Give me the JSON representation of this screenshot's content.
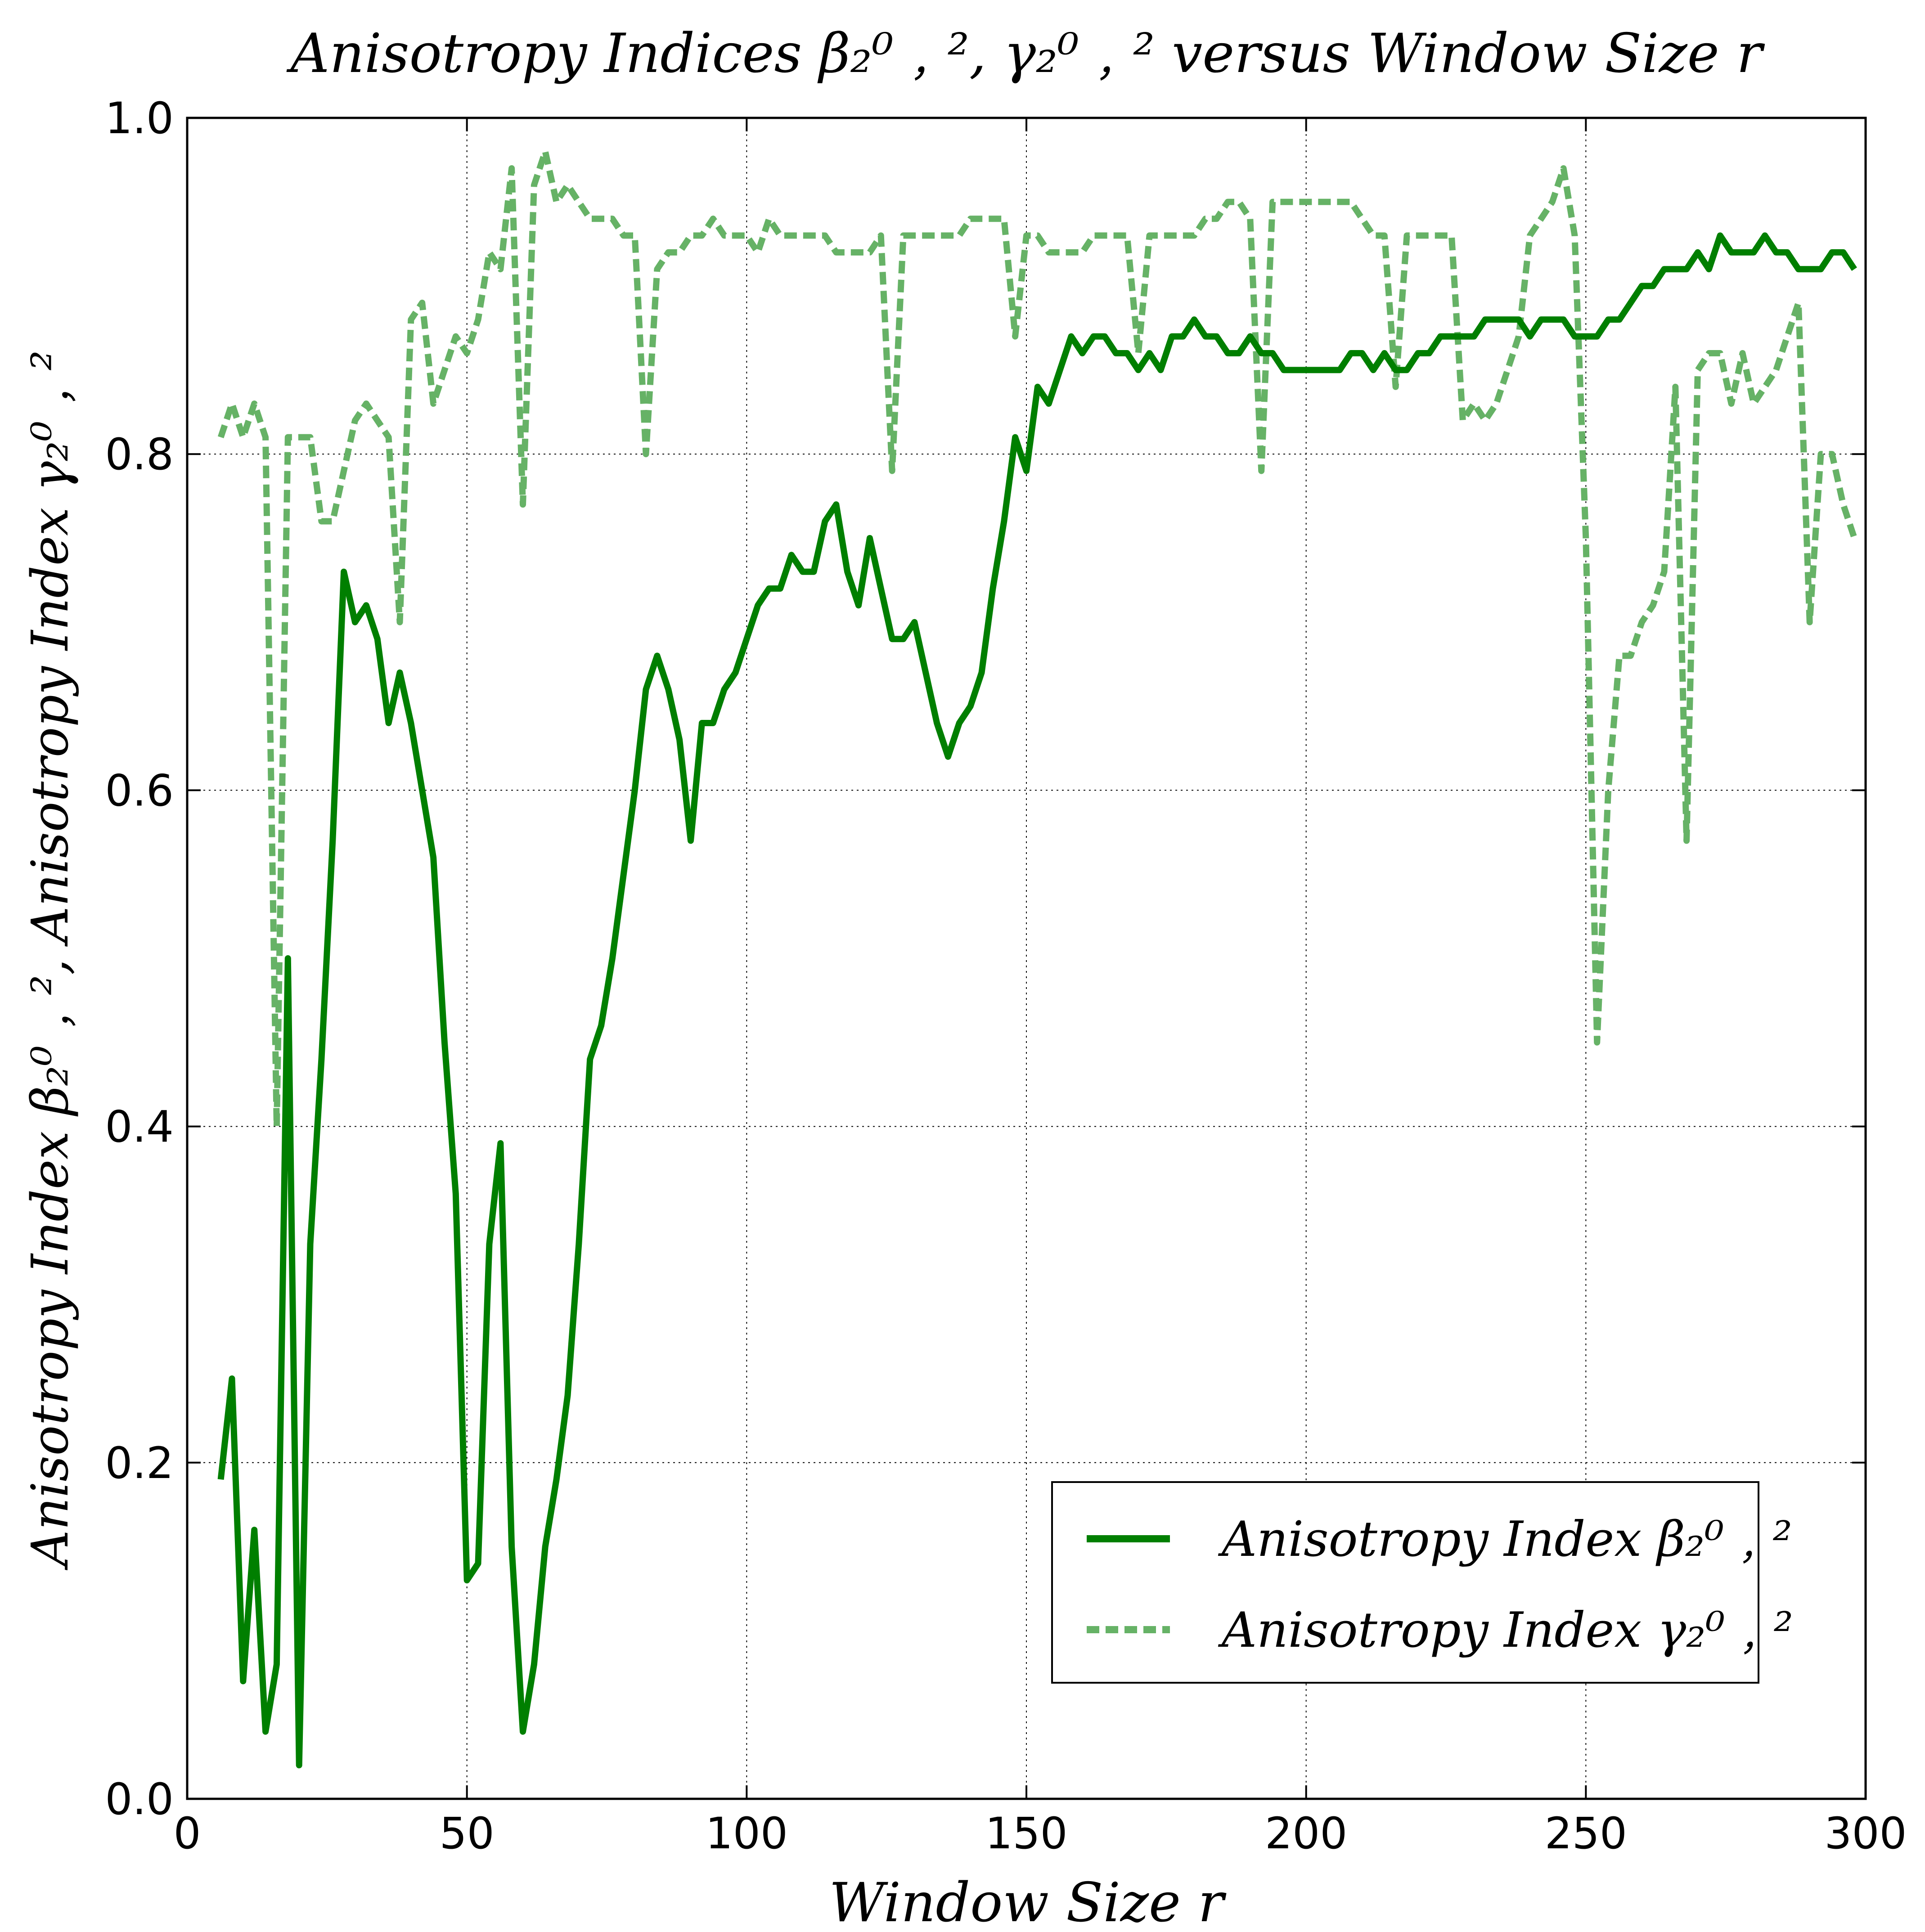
{
  "chart_data": {
    "type": "line",
    "title": "Anisotropy Indices β₂⁰﹐², γ₂⁰﹐² versus Window Size r",
    "xlabel": "Window Size r",
    "ylabel": "Anisotropy Index β₂⁰﹐²,  Anisotropy Index γ₂⁰﹐²",
    "xlim": [
      0,
      300
    ],
    "ylim": [
      0.0,
      1.0
    ],
    "xticks": [
      0,
      50,
      100,
      150,
      200,
      250,
      300
    ],
    "yticks": [
      0.0,
      0.2,
      0.4,
      0.6,
      0.8,
      1.0
    ],
    "xtick_labels": [
      "0",
      "50",
      "100",
      "150",
      "200",
      "250",
      "300"
    ],
    "ytick_labels": [
      "0.0",
      "0.2",
      "0.4",
      "0.6",
      "0.8",
      "1.0"
    ],
    "grid": true,
    "legend_position": "lower-right",
    "series": [
      {
        "name": "Anisotropy Index β₂⁰﹐²",
        "style": "solid",
        "color": "#007f00",
        "x": [
          6,
          8,
          10,
          12,
          14,
          16,
          18,
          20,
          22,
          24,
          26,
          28,
          30,
          32,
          34,
          36,
          38,
          40,
          42,
          44,
          46,
          48,
          50,
          52,
          54,
          56,
          58,
          60,
          62,
          64,
          66,
          68,
          70,
          72,
          74,
          76,
          78,
          80,
          82,
          84,
          86,
          88,
          90,
          92,
          94,
          96,
          98,
          100,
          102,
          104,
          106,
          108,
          110,
          112,
          114,
          116,
          118,
          120,
          122,
          124,
          126,
          128,
          130,
          132,
          134,
          136,
          138,
          140,
          142,
          144,
          146,
          148,
          150,
          152,
          154,
          156,
          158,
          160,
          162,
          164,
          166,
          168,
          170,
          172,
          174,
          176,
          178,
          180,
          182,
          184,
          186,
          188,
          190,
          192,
          194,
          196,
          198,
          200,
          202,
          204,
          206,
          208,
          210,
          212,
          214,
          216,
          218,
          220,
          222,
          224,
          226,
          228,
          230,
          232,
          234,
          236,
          238,
          240,
          242,
          244,
          246,
          248,
          250,
          252,
          254,
          256,
          258,
          260,
          262,
          264,
          266,
          268,
          270,
          272,
          274,
          276,
          278,
          280,
          282,
          284,
          286,
          288,
          290,
          292,
          294,
          296,
          298
        ],
        "y": [
          0.19,
          0.25,
          0.07,
          0.16,
          0.04,
          0.08,
          0.5,
          0.02,
          0.33,
          0.44,
          0.57,
          0.73,
          0.7,
          0.71,
          0.69,
          0.64,
          0.67,
          0.64,
          0.6,
          0.56,
          0.45,
          0.36,
          0.13,
          0.14,
          0.33,
          0.39,
          0.15,
          0.04,
          0.08,
          0.15,
          0.19,
          0.24,
          0.33,
          0.44,
          0.46,
          0.5,
          0.55,
          0.6,
          0.66,
          0.68,
          0.66,
          0.63,
          0.57,
          0.64,
          0.64,
          0.66,
          0.67,
          0.69,
          0.71,
          0.72,
          0.72,
          0.74,
          0.73,
          0.73,
          0.76,
          0.77,
          0.73,
          0.71,
          0.75,
          0.72,
          0.69,
          0.69,
          0.7,
          0.67,
          0.64,
          0.62,
          0.64,
          0.65,
          0.67,
          0.72,
          0.76,
          0.81,
          0.79,
          0.84,
          0.83,
          0.85,
          0.87,
          0.86,
          0.87,
          0.87,
          0.86,
          0.86,
          0.85,
          0.86,
          0.85,
          0.87,
          0.87,
          0.88,
          0.87,
          0.87,
          0.86,
          0.86,
          0.87,
          0.86,
          0.86,
          0.85,
          0.85,
          0.85,
          0.85,
          0.85,
          0.85,
          0.86,
          0.86,
          0.85,
          0.86,
          0.85,
          0.85,
          0.86,
          0.86,
          0.87,
          0.87,
          0.87,
          0.87,
          0.88,
          0.88,
          0.88,
          0.88,
          0.87,
          0.88,
          0.88,
          0.88,
          0.87,
          0.87,
          0.87,
          0.88,
          0.88,
          0.89,
          0.9,
          0.9,
          0.91,
          0.91,
          0.91,
          0.92,
          0.91,
          0.93,
          0.92,
          0.92,
          0.92,
          0.93,
          0.92,
          0.92,
          0.91,
          0.91,
          0.91,
          0.92,
          0.92,
          0.91
        ]
      },
      {
        "name": "Anisotropy Index γ₂⁰﹐²",
        "style": "dashed",
        "color": "#66b266",
        "x": [
          6,
          8,
          10,
          12,
          14,
          16,
          18,
          20,
          22,
          24,
          26,
          28,
          30,
          32,
          34,
          36,
          38,
          40,
          42,
          44,
          46,
          48,
          50,
          52,
          54,
          56,
          58,
          60,
          62,
          64,
          66,
          68,
          70,
          72,
          74,
          76,
          78,
          80,
          82,
          84,
          86,
          88,
          90,
          92,
          94,
          96,
          98,
          100,
          102,
          104,
          106,
          108,
          110,
          112,
          114,
          116,
          118,
          120,
          122,
          124,
          126,
          128,
          130,
          132,
          134,
          136,
          138,
          140,
          142,
          144,
          146,
          148,
          150,
          152,
          154,
          156,
          158,
          160,
          162,
          164,
          166,
          168,
          170,
          172,
          174,
          176,
          178,
          180,
          182,
          184,
          186,
          188,
          190,
          192,
          194,
          196,
          198,
          200,
          202,
          204,
          206,
          208,
          210,
          212,
          214,
          216,
          218,
          220,
          222,
          224,
          226,
          228,
          230,
          232,
          234,
          236,
          238,
          240,
          242,
          244,
          246,
          248,
          250,
          252,
          254,
          256,
          258,
          260,
          262,
          264,
          266,
          268,
          270,
          272,
          274,
          276,
          278,
          280,
          282,
          284,
          286,
          288,
          290,
          292,
          294,
          296,
          298
        ],
        "y": [
          0.81,
          0.83,
          0.81,
          0.83,
          0.81,
          0.4,
          0.81,
          0.81,
          0.81,
          0.76,
          0.76,
          0.79,
          0.82,
          0.83,
          0.82,
          0.81,
          0.7,
          0.88,
          0.89,
          0.83,
          0.85,
          0.87,
          0.86,
          0.88,
          0.92,
          0.91,
          0.97,
          0.77,
          0.96,
          0.98,
          0.95,
          0.96,
          0.95,
          0.94,
          0.94,
          0.94,
          0.93,
          0.93,
          0.8,
          0.91,
          0.92,
          0.92,
          0.93,
          0.93,
          0.94,
          0.93,
          0.93,
          0.93,
          0.92,
          0.94,
          0.93,
          0.93,
          0.93,
          0.93,
          0.93,
          0.92,
          0.92,
          0.92,
          0.92,
          0.93,
          0.79,
          0.93,
          0.93,
          0.93,
          0.93,
          0.93,
          0.93,
          0.94,
          0.94,
          0.94,
          0.94,
          0.87,
          0.93,
          0.93,
          0.92,
          0.92,
          0.92,
          0.92,
          0.93,
          0.93,
          0.93,
          0.93,
          0.86,
          0.93,
          0.93,
          0.93,
          0.93,
          0.93,
          0.94,
          0.94,
          0.95,
          0.95,
          0.94,
          0.79,
          0.95,
          0.95,
          0.95,
          0.95,
          0.95,
          0.95,
          0.95,
          0.95,
          0.94,
          0.93,
          0.93,
          0.84,
          0.93,
          0.93,
          0.93,
          0.93,
          0.93,
          0.82,
          0.83,
          0.82,
          0.83,
          0.85,
          0.87,
          0.93,
          0.94,
          0.95,
          0.97,
          0.93,
          0.75,
          0.45,
          0.6,
          0.68,
          0.68,
          0.7,
          0.71,
          0.73,
          0.84,
          0.57,
          0.85,
          0.86,
          0.86,
          0.83,
          0.86,
          0.83,
          0.84,
          0.85,
          0.87,
          0.89,
          0.7,
          0.8,
          0.8,
          0.77,
          0.75
        ]
      }
    ]
  }
}
